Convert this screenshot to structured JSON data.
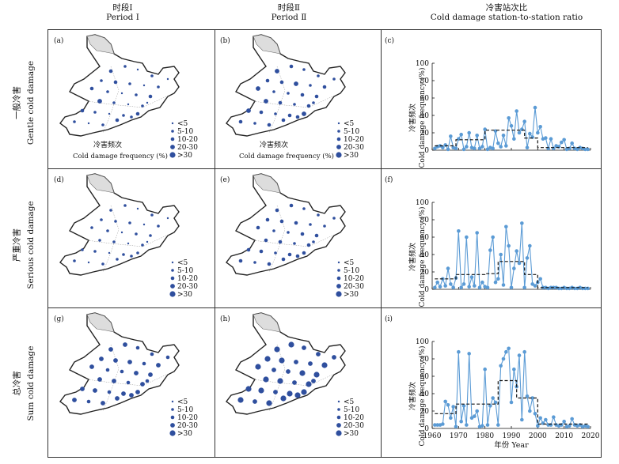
{
  "headers": {
    "col1_zh": "时段Ⅰ",
    "col1_en": "Period Ⅰ",
    "col2_zh": "时段Ⅱ",
    "col2_en": "Period Ⅱ",
    "col3_zh": "冷害站次比",
    "col3_en": "Cold damage station-to-station ratio"
  },
  "rows": [
    {
      "zh": "一般冷害",
      "en": "Gentle cold damage"
    },
    {
      "zh": "严重冷害",
      "en": "Serious cold damage"
    },
    {
      "zh": "总冷害",
      "en": "Sum cold damage"
    }
  ],
  "panel_labels": [
    "(a)",
    "(b)",
    "(c)",
    "(d)",
    "(e)",
    "(f)",
    "(g)",
    "(h)",
    "(i)"
  ],
  "map_legend": {
    "title_zh": "冷害频次",
    "title_en": "Cold damage frequency (%)",
    "classes": [
      "<5",
      "5-10",
      "10-20",
      "20-30",
      ">30"
    ]
  },
  "chart_axis": {
    "ylabel_zh": "冷害频次",
    "ylabel_en": "Cold damage frequency (%)",
    "xlabel": "年份 Year",
    "yticks": [
      "0",
      "20",
      "40",
      "60",
      "80",
      "100"
    ],
    "xticks": [
      "1960",
      "1970",
      "1980",
      "1990",
      "2000",
      "2010",
      "2020"
    ]
  },
  "colors": {
    "series": "#5b9bd5",
    "mean": "#111111",
    "station": "#2f4f9e"
  },
  "chart_data": [
    {
      "type": "line",
      "panel": "(c)",
      "ylabel": "Cold damage frequency (%)",
      "ylim": [
        0,
        100
      ],
      "xlim": [
        1960,
        2020
      ],
      "x": [
        1961,
        1962,
        1963,
        1964,
        1965,
        1966,
        1967,
        1968,
        1969,
        1970,
        1971,
        1972,
        1973,
        1974,
        1975,
        1976,
        1977,
        1978,
        1979,
        1980,
        1981,
        1982,
        1983,
        1984,
        1985,
        1986,
        1987,
        1988,
        1989,
        1990,
        1991,
        1992,
        1993,
        1994,
        1995,
        1996,
        1997,
        1998,
        1999,
        2000,
        2001,
        2002,
        2003,
        2004,
        2005,
        2006,
        2007,
        2008,
        2009,
        2010,
        2011,
        2012,
        2013,
        2014,
        2015,
        2016,
        2017,
        2018,
        2019
      ],
      "values": [
        2,
        4,
        5,
        3,
        6,
        1,
        16,
        3,
        2,
        13,
        18,
        1,
        4,
        20,
        3,
        2,
        17,
        2,
        4,
        24,
        1,
        3,
        2,
        22,
        8,
        4,
        17,
        5,
        37,
        28,
        13,
        45,
        20,
        24,
        33,
        3,
        19,
        15,
        49,
        20,
        27,
        13,
        14,
        2,
        13,
        2,
        5,
        4,
        9,
        12,
        1,
        2,
        8,
        2,
        1,
        3,
        2,
        1,
        1
      ],
      "segments": [
        {
          "from": 1961,
          "to": 1969,
          "value": 5
        },
        {
          "from": 1969,
          "to": 1980,
          "value": 12
        },
        {
          "from": 1980,
          "to": 1995,
          "value": 23
        },
        {
          "from": 1995,
          "to": 2000,
          "value": 14
        },
        {
          "from": 2000,
          "to": 2019,
          "value": 3
        }
      ]
    },
    {
      "type": "line",
      "panel": "(f)",
      "ylabel": "Cold damage frequency (%)",
      "ylim": [
        0,
        100
      ],
      "xlim": [
        1960,
        2020
      ],
      "x": [
        1961,
        1962,
        1963,
        1964,
        1965,
        1966,
        1967,
        1968,
        1969,
        1970,
        1971,
        1972,
        1973,
        1974,
        1975,
        1976,
        1977,
        1978,
        1979,
        1980,
        1981,
        1982,
        1983,
        1984,
        1985,
        1986,
        1987,
        1988,
        1989,
        1990,
        1991,
        1992,
        1993,
        1994,
        1995,
        1996,
        1997,
        1998,
        1999,
        2000,
        2001,
        2002,
        2003,
        2004,
        2005,
        2006,
        2007,
        2008,
        2009,
        2010,
        2011,
        2012,
        2013,
        2014,
        2015,
        2016,
        2017,
        2018,
        2019
      ],
      "values": [
        2,
        8,
        3,
        12,
        4,
        24,
        6,
        2,
        13,
        67,
        2,
        6,
        60,
        3,
        14,
        4,
        65,
        2,
        8,
        3,
        2,
        45,
        60,
        8,
        12,
        40,
        5,
        72,
        50,
        2,
        24,
        44,
        30,
        76,
        2,
        36,
        50,
        6,
        4,
        8,
        12,
        2,
        2,
        1,
        2,
        2,
        2,
        1,
        1,
        2,
        1,
        1,
        2,
        1,
        1,
        2,
        1,
        1,
        1
      ],
      "segments": [
        {
          "from": 1961,
          "to": 1969,
          "value": 12
        },
        {
          "from": 1969,
          "to": 1980,
          "value": 17
        },
        {
          "from": 1980,
          "to": 1985,
          "value": 18
        },
        {
          "from": 1985,
          "to": 1995,
          "value": 32
        },
        {
          "from": 1995,
          "to": 2000,
          "value": 17
        },
        {
          "from": 2000,
          "to": 2019,
          "value": 2
        }
      ]
    },
    {
      "type": "line",
      "panel": "(i)",
      "ylabel": "Cold damage frequency (%)",
      "ylim": [
        0,
        100
      ],
      "xlim": [
        1960,
        2020
      ],
      "x": [
        1961,
        1962,
        1963,
        1964,
        1965,
        1966,
        1967,
        1968,
        1969,
        1970,
        1971,
        1972,
        1973,
        1974,
        1975,
        1976,
        1977,
        1978,
        1979,
        1980,
        1981,
        1982,
        1983,
        1984,
        1985,
        1986,
        1987,
        1988,
        1989,
        1990,
        1991,
        1992,
        1993,
        1994,
        1995,
        1996,
        1997,
        1998,
        1999,
        2000,
        2001,
        2002,
        2003,
        2004,
        2005,
        2006,
        2007,
        2008,
        2009,
        2010,
        2011,
        2012,
        2013,
        2014,
        2015,
        2016,
        2017,
        2018,
        2019
      ],
      "values": [
        4,
        4,
        4,
        5,
        31,
        27,
        12,
        25,
        2,
        88,
        8,
        26,
        4,
        86,
        12,
        14,
        20,
        2,
        3,
        68,
        4,
        26,
        35,
        30,
        4,
        72,
        80,
        88,
        92,
        30,
        68,
        48,
        84,
        10,
        88,
        37,
        20,
        35,
        17,
        3,
        12,
        6,
        10,
        4,
        4,
        13,
        4,
        3,
        4,
        8,
        2,
        3,
        11,
        4,
        3,
        4,
        2,
        3,
        2
      ],
      "segments": [
        {
          "from": 1961,
          "to": 1969,
          "value": 17
        },
        {
          "from": 1969,
          "to": 1980,
          "value": 28
        },
        {
          "from": 1980,
          "to": 1985,
          "value": 28
        },
        {
          "from": 1985,
          "to": 1992,
          "value": 55
        },
        {
          "from": 1992,
          "to": 2000,
          "value": 35
        },
        {
          "from": 2000,
          "to": 2019,
          "value": 5
        }
      ]
    }
  ]
}
